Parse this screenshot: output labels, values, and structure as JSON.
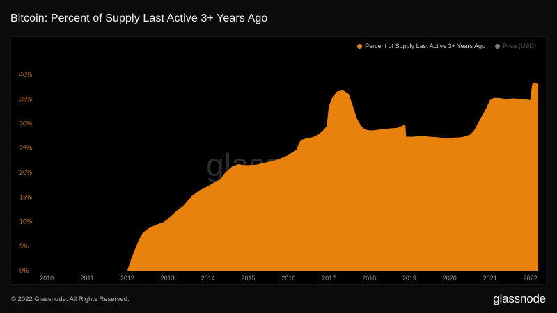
{
  "page": {
    "title": "Bitcoin: Percent of Supply Last Active 3+ Years Ago",
    "footer_copyright": "© 2022 Glassnode. All Rights Reserved.",
    "footer_brand": "glassnode",
    "watermark": "glassnode"
  },
  "colors": {
    "series_fill": "#e8820c",
    "axis_tick_y": "#c8742a",
    "axis_tick_x": "#9a9a9a",
    "price_legend": "#777777",
    "background": "#000000"
  },
  "legend": {
    "items": [
      {
        "label": "Percent of Supply Last Active 3+ Years Ago",
        "color": "#e8820c",
        "active": true
      },
      {
        "label": "Price (USD)",
        "color": "#777777",
        "active": false
      }
    ]
  },
  "chart_data": {
    "type": "area",
    "title": "Bitcoin: Percent of Supply Last Active 3+ Years Ago",
    "xlabel": "",
    "ylabel": "",
    "xlim": [
      2009.6,
      2022.25
    ],
    "ylim": [
      0,
      40
    ],
    "x_ticks": [
      2010,
      2011,
      2012,
      2013,
      2014,
      2015,
      2016,
      2017,
      2018,
      2019,
      2020,
      2021,
      2022
    ],
    "x_tick_labels": [
      "2010",
      "2011",
      "2012",
      "2013",
      "2014",
      "2015",
      "2016",
      "2017",
      "2018",
      "2019",
      "2020",
      "2021",
      "2022"
    ],
    "y_ticks": [
      0,
      5,
      10,
      15,
      20,
      25,
      30,
      35,
      40
    ],
    "y_tick_labels": [
      "0%",
      "5%",
      "10%",
      "15%",
      "20%",
      "25%",
      "30%",
      "35%",
      "40%"
    ],
    "grid": false,
    "legend_position": "top-right",
    "series": [
      {
        "name": "Percent of Supply Last Active 3+ Years Ago",
        "x": [
          2012.0,
          2012.1,
          2012.2,
          2012.3,
          2012.4,
          2012.5,
          2012.6,
          2012.7,
          2012.8,
          2012.9,
          2013.0,
          2013.2,
          2013.4,
          2013.6,
          2013.8,
          2014.0,
          2014.2,
          2014.3,
          2014.4,
          2014.6,
          2014.75,
          2014.9,
          2015.0,
          2015.2,
          2015.4,
          2015.6,
          2015.8,
          2016.0,
          2016.2,
          2016.3,
          2016.45,
          2016.6,
          2016.75,
          2016.85,
          2016.95,
          2017.0,
          2017.1,
          2017.2,
          2017.35,
          2017.5,
          2017.6,
          2017.7,
          2017.8,
          2017.9,
          2018.0,
          2018.1,
          2018.3,
          2018.5,
          2018.7,
          2018.9,
          2018.92,
          2019.1,
          2019.3,
          2019.5,
          2019.7,
          2019.9,
          2020.1,
          2020.3,
          2020.5,
          2020.6,
          2020.8,
          2020.9,
          2021.0,
          2021.1,
          2021.2,
          2021.4,
          2021.6,
          2021.8,
          2022.0,
          2022.05,
          2022.1,
          2022.2
        ],
        "values": [
          0,
          2.5,
          4.5,
          6.5,
          7.8,
          8.5,
          8.9,
          9.3,
          9.6,
          9.9,
          10.5,
          12.0,
          13.3,
          15.2,
          16.4,
          17.2,
          18.2,
          18.5,
          19.7,
          21.2,
          21.7,
          21.5,
          21.5,
          21.6,
          22.0,
          22.3,
          22.9,
          23.6,
          24.7,
          26.6,
          27.0,
          27.2,
          27.8,
          28.5,
          29.5,
          33.5,
          35.5,
          36.5,
          36.8,
          36.0,
          33.5,
          31.0,
          29.5,
          28.8,
          28.6,
          28.6,
          28.8,
          29.0,
          29.1,
          29.8,
          27.3,
          27.3,
          27.5,
          27.3,
          27.2,
          27.0,
          27.1,
          27.2,
          27.7,
          28.5,
          31.5,
          33.0,
          34.8,
          35.2,
          35.2,
          35.0,
          35.1,
          35.0,
          34.8,
          38.0,
          38.3,
          38.0
        ]
      }
    ]
  }
}
